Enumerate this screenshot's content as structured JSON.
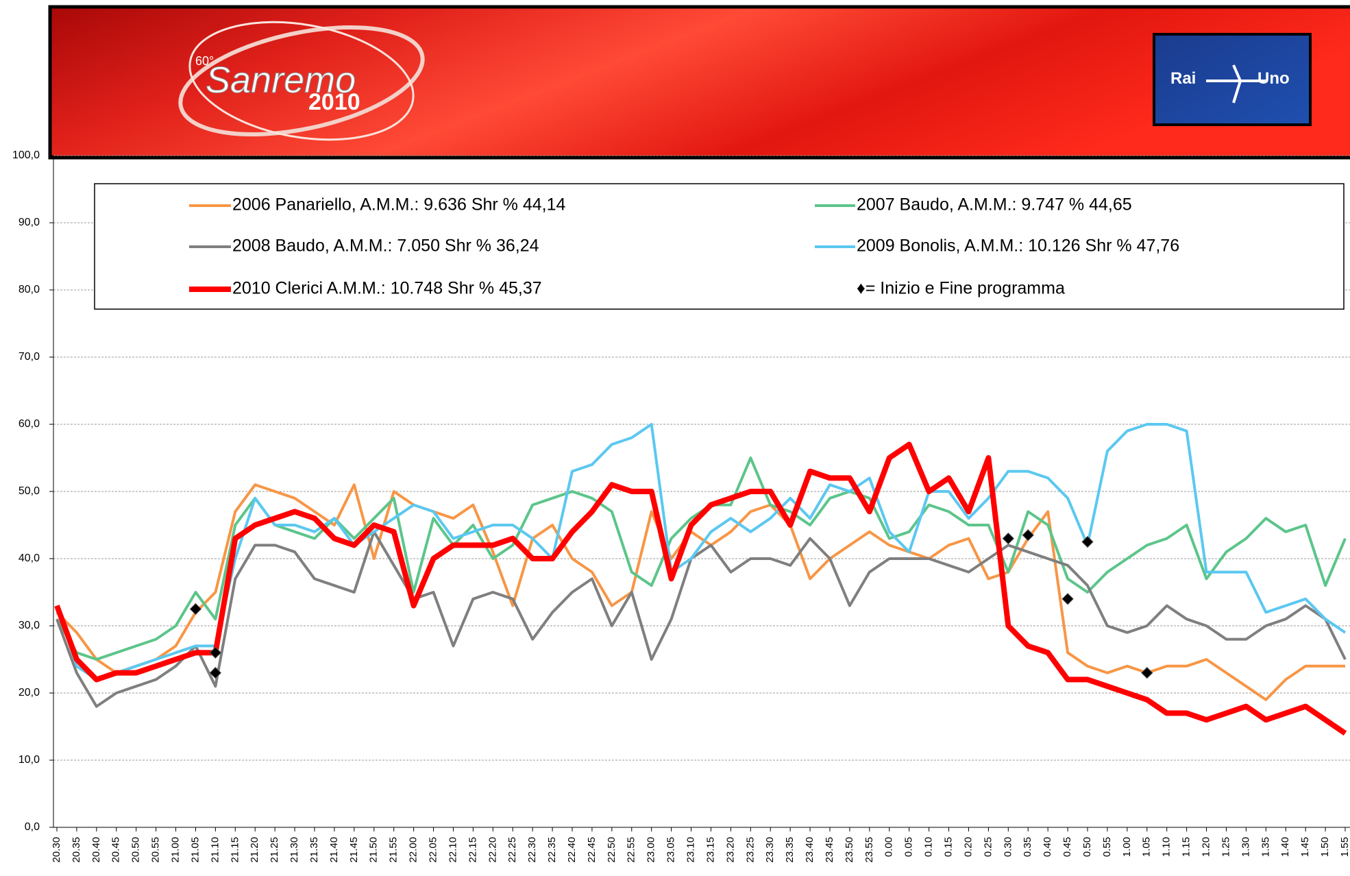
{
  "header": {
    "logo_number": "60°",
    "logo_text": "Sanremo",
    "logo_year": "2010",
    "channel_left": "Rai",
    "channel_right": "Uno"
  },
  "chart_data": {
    "type": "line",
    "categories": [
      "20.30",
      "20.35",
      "20.40",
      "20.45",
      "20.50",
      "20.55",
      "21.00",
      "21.05",
      "21.10",
      "21.15",
      "21.20",
      "21.25",
      "21.30",
      "21.35",
      "21.40",
      "21.45",
      "21.50",
      "21.55",
      "22.00",
      "22.05",
      "22.10",
      "22.15",
      "22.20",
      "22.25",
      "22.30",
      "22.35",
      "22.40",
      "22.45",
      "22.50",
      "22.55",
      "23.00",
      "23.05",
      "23.10",
      "23.15",
      "23.20",
      "23.25",
      "23.30",
      "23.35",
      "23.40",
      "23.45",
      "23.50",
      "23.55",
      "0.00",
      "0.05",
      "0.10",
      "0.15",
      "0.20",
      "0.25",
      "0.30",
      "0.35",
      "0.40",
      "0.45",
      "0.50",
      "0.55",
      "1.00",
      "1.05",
      "1.10",
      "1.15",
      "1.20",
      "1.25",
      "1.30",
      "1.35",
      "1.40",
      "1.45",
      "1.50",
      "1.55"
    ],
    "ylim": [
      0,
      100
    ],
    "yticks": [
      {
        "value": 0,
        "label": "0,0"
      },
      {
        "value": 10,
        "label": "10,0"
      },
      {
        "value": 20,
        "label": "20,0"
      },
      {
        "value": 30,
        "label": "30,0"
      },
      {
        "value": 40,
        "label": "40,0"
      },
      {
        "value": 50,
        "label": "50,0"
      },
      {
        "value": 60,
        "label": "60,0"
      },
      {
        "value": 70,
        "label": "70,0"
      },
      {
        "value": 80,
        "label": "80,0"
      },
      {
        "value": 90,
        "label": "90,0"
      },
      {
        "value": 100,
        "label": "100,0"
      }
    ],
    "grid": true,
    "series": [
      {
        "name": "2006 Panariello, A.M.M.: 9.636 Shr % 44,14",
        "color": "#f79646",
        "line_width": 4,
        "values": [
          32,
          29,
          25,
          23,
          24,
          25,
          27,
          32,
          35,
          47,
          51,
          50,
          49,
          47,
          45,
          51,
          40,
          50,
          48,
          47,
          46,
          48,
          41,
          33,
          43,
          45,
          40,
          38,
          33,
          35,
          47,
          40,
          44,
          42,
          44,
          47,
          48,
          45,
          37,
          40,
          42,
          44,
          42,
          41,
          40,
          42,
          43,
          37,
          38,
          43,
          47,
          26,
          24,
          23,
          24,
          23,
          24,
          24,
          25,
          23,
          21,
          19,
          22,
          24,
          24,
          24
        ]
      },
      {
        "name": "2007 Baudo, A.M.M.: 9.747 % 44,65",
        "color": "#5cc58a",
        "line_width": 4,
        "values": [
          31,
          26,
          25,
          26,
          27,
          28,
          30,
          35,
          31,
          45,
          49,
          45,
          44,
          43,
          46,
          43,
          46,
          49,
          35,
          46,
          42,
          45,
          40,
          42,
          48,
          49,
          50,
          49,
          47,
          38,
          36,
          43,
          46,
          48,
          48,
          55,
          48,
          47,
          45,
          49,
          50,
          49,
          43,
          44,
          48,
          47,
          45,
          45,
          38,
          47,
          45,
          37,
          35,
          38,
          40,
          42,
          43,
          45,
          37,
          41,
          43,
          46,
          44,
          45,
          36,
          43
        ]
      },
      {
        "name": "2008 Baudo, A.M.M.: 7.050 Shr % 36,24",
        "color": "#7f7f7f",
        "line_width": 4,
        "values": [
          31,
          23,
          18,
          20,
          21,
          22,
          24,
          27,
          21,
          37,
          42,
          42,
          41,
          37,
          36,
          35,
          44,
          39,
          34,
          35,
          27,
          34,
          35,
          34,
          28,
          32,
          35,
          37,
          30,
          35,
          25,
          31,
          40,
          42,
          38,
          40,
          40,
          39,
          43,
          40,
          33,
          38,
          40,
          40,
          40,
          39,
          38,
          40,
          42,
          41,
          40,
          39,
          36,
          30,
          29,
          30,
          33,
          31,
          30,
          28,
          28,
          30,
          31,
          33,
          31,
          25
        ]
      },
      {
        "name": "2009 Bonolis, A.M.M.: 10.126 Shr % 47,76",
        "color": "#5bc8f0",
        "line_width": 4,
        "values": [
          33,
          24,
          22,
          23,
          24,
          25,
          26,
          27,
          27,
          40,
          49,
          45,
          45,
          44,
          46,
          42,
          44,
          46,
          48,
          47,
          43,
          44,
          45,
          45,
          43,
          40,
          53,
          54,
          57,
          58,
          60,
          38,
          40,
          44,
          46,
          44,
          46,
          49,
          46,
          51,
          50,
          52,
          44,
          41,
          50,
          50,
          46,
          49,
          53,
          53,
          52,
          49,
          42,
          56,
          59,
          60,
          60,
          59,
          38,
          38,
          38,
          32,
          33,
          34,
          31,
          29
        ]
      },
      {
        "name": "2010 Clerici A.M.M.: 10.748 Shr % 45,37",
        "color": "#ff0000",
        "line_width": 8,
        "values": [
          33,
          25,
          22,
          23,
          23,
          24,
          25,
          26,
          26,
          43,
          45,
          46,
          47,
          46,
          43,
          42,
          45,
          44,
          33,
          40,
          42,
          42,
          42,
          43,
          40,
          40,
          44,
          47,
          51,
          50,
          50,
          37,
          45,
          48,
          49,
          50,
          50,
          45,
          53,
          52,
          52,
          47,
          55,
          57,
          50,
          52,
          47,
          55,
          30,
          27,
          26,
          22,
          22,
          21,
          20,
          19,
          17,
          17,
          16,
          17,
          18,
          16,
          17,
          18,
          16,
          14
        ]
      }
    ],
    "marker_label": "♦= Inizio e Fine programma",
    "marker_color": "#000000",
    "markers": [
      {
        "category": "21.05",
        "value": 32.5
      },
      {
        "category": "21.10",
        "value": 26
      },
      {
        "category": "21.10",
        "value": 23
      },
      {
        "category": "0.30",
        "value": 43
      },
      {
        "category": "0.35",
        "value": 43.5
      },
      {
        "category": "0.45",
        "value": 34
      },
      {
        "category": "0.50",
        "value": 42.5
      },
      {
        "category": "1.05",
        "value": 23
      }
    ]
  }
}
